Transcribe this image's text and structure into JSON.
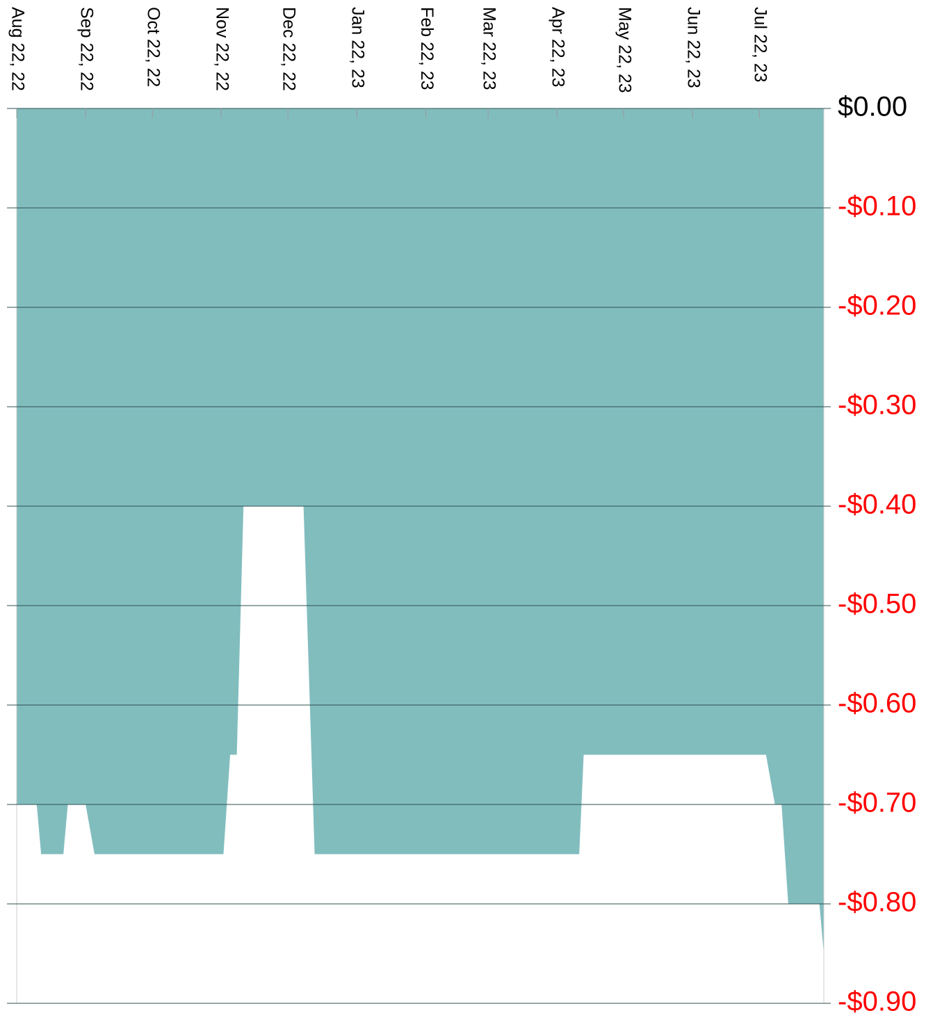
{
  "chart_data": {
    "type": "area",
    "x": [
      "2022-08-22",
      "2022-08-31",
      "2022-09-02",
      "2022-09-12",
      "2022-09-14",
      "2022-09-22",
      "2022-09-26",
      "2022-11-23",
      "2022-11-26",
      "2022-11-29",
      "2022-12-02",
      "2022-12-29",
      "2023-01-03",
      "2023-05-02",
      "2023-05-04",
      "2023-07-25",
      "2023-07-29",
      "2023-08-01",
      "2023-08-04",
      "2023-08-18",
      "2023-08-20"
    ],
    "values": [
      -0.7,
      -0.7,
      -0.75,
      -0.75,
      -0.7,
      -0.7,
      -0.75,
      -0.75,
      -0.65,
      -0.65,
      -0.4,
      -0.4,
      -0.75,
      -0.75,
      -0.65,
      -0.65,
      -0.7,
      -0.7,
      -0.8,
      -0.8,
      -0.85
    ],
    "color": "#82bdbe",
    "xlim": [
      "2022-08-22",
      "2023-08-20"
    ],
    "xticks": [
      {
        "value": "2022-08-22",
        "label": "Aug 22, 22"
      },
      {
        "value": "2022-09-22",
        "label": "Sep 22, 22"
      },
      {
        "value": "2022-10-22",
        "label": "Oct 22, 22"
      },
      {
        "value": "2022-11-22",
        "label": "Nov 22, 22"
      },
      {
        "value": "2022-12-22",
        "label": "Dec 22, 22"
      },
      {
        "value": "2023-01-22",
        "label": "Jan 22, 23"
      },
      {
        "value": "2023-02-22",
        "label": "Feb 22, 23"
      },
      {
        "value": "2023-03-22",
        "label": "Mar 22, 23"
      },
      {
        "value": "2023-04-22",
        "label": "Apr 22, 23"
      },
      {
        "value": "2023-05-22",
        "label": "May 22, 23"
      },
      {
        "value": "2023-06-22",
        "label": "Jun 22, 23"
      },
      {
        "value": "2023-07-22",
        "label": "Jul 22, 23"
      }
    ],
    "ylim": [
      -0.9,
      0
    ],
    "yticks": [
      {
        "value": 0,
        "label": "$0.00"
      },
      {
        "value": -0.1,
        "label": "-$0.10"
      },
      {
        "value": -0.2,
        "label": "-$0.20"
      },
      {
        "value": -0.3,
        "label": "-$0.30"
      },
      {
        "value": -0.4,
        "label": "-$0.40"
      },
      {
        "value": -0.5,
        "label": "-$0.50"
      },
      {
        "value": -0.6,
        "label": "-$0.60"
      },
      {
        "value": -0.7,
        "label": "-$0.70"
      },
      {
        "value": -0.8,
        "label": "-$0.80"
      },
      {
        "value": -0.9,
        "label": "-$0.90"
      }
    ],
    "grid": true,
    "negative_label_color": "#ff0000"
  }
}
